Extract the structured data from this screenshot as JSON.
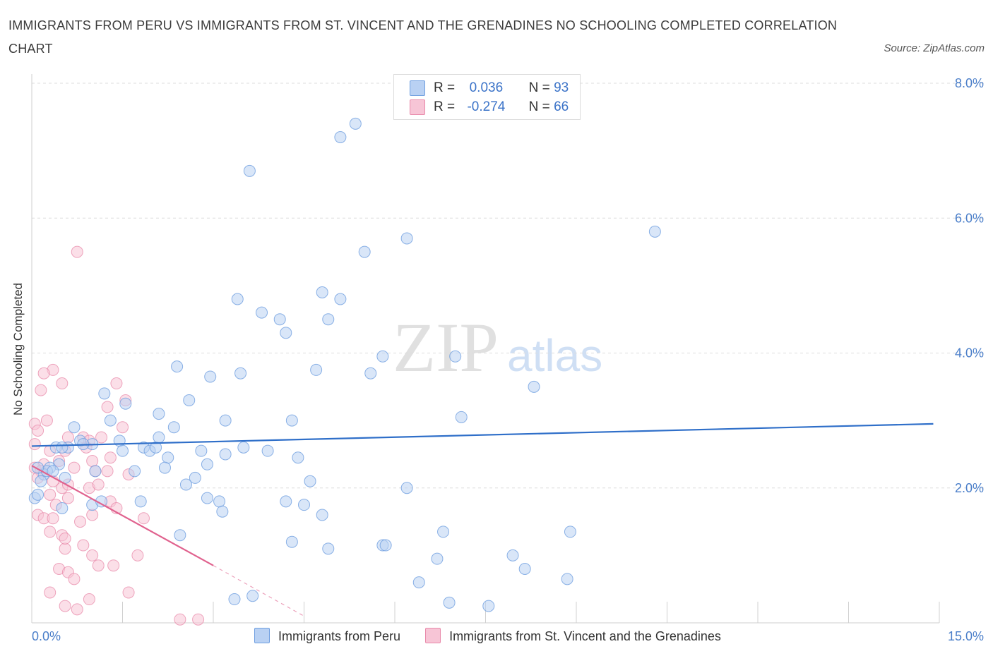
{
  "title": "IMMIGRANTS FROM PERU VS IMMIGRANTS FROM ST. VINCENT AND THE GRENADINES NO SCHOOLING COMPLETED CORRELATION CHART",
  "source": "Source: ZipAtlas.com",
  "watermark": {
    "zip": "ZIP",
    "atlas": "atlas"
  },
  "legend_top": [
    {
      "r_label": "R =",
      "r_value": "0.036",
      "n_label": "N =",
      "n_value": "93"
    },
    {
      "r_label": "R =",
      "r_value": "-0.274",
      "n_label": "N =",
      "n_value": "66"
    }
  ],
  "legend_bottom": [
    "Immigrants from Peru",
    "Immigrants from St. Vincent and the Grenadines"
  ],
  "colors": {
    "blue": "#6f9fe0",
    "blue_fill": "#b9d1f3",
    "blue_line": "#2f6fc9",
    "pink": "#e889aa",
    "pink_fill": "#f7c5d6",
    "pink_line": "#e0628e",
    "axis_text": "#4a7ec9",
    "grid": "#dddddd"
  },
  "chart_data": {
    "type": "scatter",
    "title": "IMMIGRANTS FROM PERU VS IMMIGRANTS FROM ST. VINCENT AND THE GRENADINES NO SCHOOLING COMPLETED CORRELATION CHART",
    "xlabel": "",
    "ylabel": "No Schooling Completed",
    "xlim": [
      0,
      15
    ],
    "ylim": [
      0,
      8
    ],
    "x_tick_labels": [
      "0.0%",
      "15.0%"
    ],
    "y_ticks": [
      2,
      4,
      6,
      8
    ],
    "y_tick_labels": [
      "2.0%",
      "4.0%",
      "6.0%",
      "8.0%"
    ],
    "series": [
      {
        "name": "Immigrants from Peru",
        "R": 0.036,
        "N": 93,
        "trend": {
          "x": [
            0.0,
            14.9
          ],
          "y": [
            2.62,
            2.95
          ]
        },
        "points": [
          [
            3.6,
            6.7
          ],
          [
            5.1,
            7.2
          ],
          [
            5.35,
            7.4
          ],
          [
            10.3,
            5.8
          ],
          [
            6.2,
            5.7
          ],
          [
            5.5,
            5.5
          ],
          [
            3.4,
            4.8
          ],
          [
            4.8,
            4.9
          ],
          [
            5.1,
            4.8
          ],
          [
            3.8,
            4.6
          ],
          [
            4.1,
            4.5
          ],
          [
            4.9,
            4.5
          ],
          [
            4.2,
            4.3
          ],
          [
            2.4,
            3.8
          ],
          [
            2.95,
            3.65
          ],
          [
            3.45,
            3.7
          ],
          [
            4.7,
            3.75
          ],
          [
            5.6,
            3.7
          ],
          [
            5.8,
            3.95
          ],
          [
            7.0,
            3.95
          ],
          [
            8.3,
            3.5
          ],
          [
            1.2,
            3.4
          ],
          [
            1.55,
            3.25
          ],
          [
            2.6,
            3.3
          ],
          [
            2.1,
            3.1
          ],
          [
            3.2,
            3.0
          ],
          [
            4.3,
            3.0
          ],
          [
            1.3,
            3.0
          ],
          [
            2.35,
            2.9
          ],
          [
            7.1,
            3.05
          ],
          [
            0.7,
            2.9
          ],
          [
            0.8,
            2.7
          ],
          [
            1.0,
            2.65
          ],
          [
            0.6,
            2.6
          ],
          [
            0.85,
            2.65
          ],
          [
            0.4,
            2.6
          ],
          [
            0.5,
            2.6
          ],
          [
            1.45,
            2.7
          ],
          [
            1.5,
            2.55
          ],
          [
            1.85,
            2.6
          ],
          [
            1.95,
            2.55
          ],
          [
            2.05,
            2.6
          ],
          [
            2.1,
            2.75
          ],
          [
            2.25,
            2.45
          ],
          [
            2.8,
            2.55
          ],
          [
            3.2,
            2.5
          ],
          [
            3.5,
            2.6
          ],
          [
            3.9,
            2.55
          ],
          [
            4.4,
            2.45
          ],
          [
            2.9,
            2.35
          ],
          [
            2.2,
            2.3
          ],
          [
            1.05,
            2.25
          ],
          [
            1.7,
            2.25
          ],
          [
            0.45,
            2.35
          ],
          [
            0.3,
            2.3
          ],
          [
            0.55,
            2.15
          ],
          [
            0.2,
            2.2
          ],
          [
            0.25,
            2.25
          ],
          [
            0.1,
            2.3
          ],
          [
            0.35,
            2.25
          ],
          [
            0.15,
            2.1
          ],
          [
            2.7,
            2.15
          ],
          [
            2.55,
            2.05
          ],
          [
            4.6,
            2.1
          ],
          [
            6.2,
            2.0
          ],
          [
            2.9,
            1.85
          ],
          [
            3.1,
            1.8
          ],
          [
            1.8,
            1.8
          ],
          [
            1.0,
            1.75
          ],
          [
            1.15,
            1.8
          ],
          [
            4.2,
            1.8
          ],
          [
            4.5,
            1.75
          ],
          [
            3.15,
            1.65
          ],
          [
            4.8,
            1.6
          ],
          [
            0.5,
            1.7
          ],
          [
            2.45,
            1.3
          ],
          [
            4.3,
            1.2
          ],
          [
            4.9,
            1.1
          ],
          [
            5.8,
            1.15
          ],
          [
            5.85,
            1.15
          ],
          [
            6.8,
            1.35
          ],
          [
            8.9,
            1.35
          ],
          [
            6.7,
            0.95
          ],
          [
            7.95,
            1.0
          ],
          [
            8.15,
            0.8
          ],
          [
            8.85,
            0.65
          ],
          [
            6.4,
            0.6
          ],
          [
            3.35,
            0.35
          ],
          [
            3.65,
            0.4
          ],
          [
            6.9,
            0.3
          ],
          [
            7.55,
            0.25
          ],
          [
            0.05,
            1.85
          ],
          [
            0.1,
            1.9
          ]
        ]
      },
      {
        "name": "Immigrants from St. Vincent and the Grenadines",
        "R": -0.274,
        "N": 66,
        "trend": {
          "x": [
            0.0,
            3.0
          ],
          "y": [
            2.33,
            0.85
          ]
        },
        "trend_dashed": {
          "x": [
            3.0,
            4.5
          ],
          "y": [
            0.85,
            0.1
          ]
        },
        "points": [
          [
            0.75,
            5.5
          ],
          [
            0.35,
            3.75
          ],
          [
            0.2,
            3.7
          ],
          [
            0.5,
            3.55
          ],
          [
            0.15,
            3.45
          ],
          [
            1.4,
            3.55
          ],
          [
            1.55,
            3.3
          ],
          [
            1.25,
            3.2
          ],
          [
            0.25,
            3.0
          ],
          [
            0.05,
            2.95
          ],
          [
            0.1,
            2.85
          ],
          [
            0.6,
            2.75
          ],
          [
            0.85,
            2.75
          ],
          [
            0.95,
            2.7
          ],
          [
            1.15,
            2.75
          ],
          [
            1.5,
            2.9
          ],
          [
            0.05,
            2.65
          ],
          [
            0.3,
            2.55
          ],
          [
            0.55,
            2.55
          ],
          [
            0.9,
            2.6
          ],
          [
            1.3,
            2.45
          ],
          [
            1.0,
            2.4
          ],
          [
            0.45,
            2.4
          ],
          [
            0.2,
            2.35
          ],
          [
            0.05,
            2.3
          ],
          [
            0.15,
            2.25
          ],
          [
            0.7,
            2.3
          ],
          [
            1.05,
            2.25
          ],
          [
            1.25,
            2.25
          ],
          [
            1.6,
            2.2
          ],
          [
            0.1,
            2.15
          ],
          [
            0.35,
            2.1
          ],
          [
            0.5,
            2.0
          ],
          [
            0.6,
            2.05
          ],
          [
            0.95,
            2.0
          ],
          [
            0.3,
            1.9
          ],
          [
            0.6,
            1.85
          ],
          [
            1.1,
            2.05
          ],
          [
            0.4,
            1.75
          ],
          [
            0.1,
            1.6
          ],
          [
            0.2,
            1.55
          ],
          [
            0.35,
            1.55
          ],
          [
            0.8,
            1.5
          ],
          [
            1.0,
            1.6
          ],
          [
            1.3,
            1.8
          ],
          [
            1.4,
            1.7
          ],
          [
            1.85,
            1.55
          ],
          [
            0.3,
            1.35
          ],
          [
            0.5,
            1.3
          ],
          [
            0.55,
            1.1
          ],
          [
            0.55,
            1.25
          ],
          [
            1.0,
            1.0
          ],
          [
            1.1,
            0.85
          ],
          [
            1.35,
            0.85
          ],
          [
            0.45,
            0.8
          ],
          [
            0.6,
            0.75
          ],
          [
            0.7,
            0.65
          ],
          [
            0.3,
            0.45
          ],
          [
            0.55,
            0.25
          ],
          [
            0.95,
            0.35
          ],
          [
            1.6,
            0.45
          ],
          [
            0.75,
            0.2
          ],
          [
            2.45,
            0.05
          ],
          [
            2.75,
            0.05
          ],
          [
            1.75,
            1.0
          ],
          [
            0.85,
            1.15
          ]
        ]
      }
    ]
  }
}
